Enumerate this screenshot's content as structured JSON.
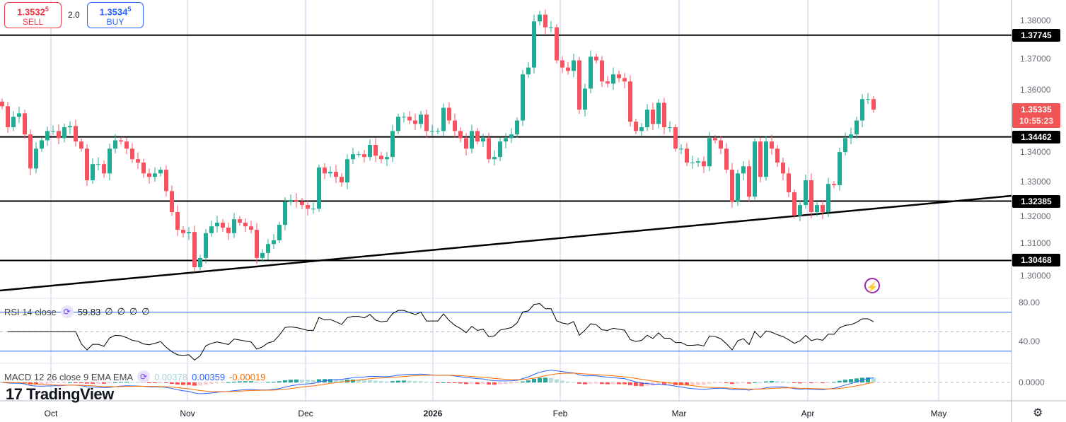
{
  "trade": {
    "sell": {
      "price_main": "1.3532",
      "price_sup": "5",
      "label": "SELL"
    },
    "spread": "2.0",
    "buy": {
      "price_main": "1.3534",
      "price_sup": "5",
      "label": "BUY"
    }
  },
  "price_axis": [
    "1.38000",
    "1.37000",
    "1.36000",
    "1.34000",
    "1.33000",
    "1.32000",
    "1.31000",
    "1.30000"
  ],
  "levels": [
    "1.37745",
    "1.34462",
    "1.32385",
    "1.30468"
  ],
  "current_price": {
    "price": "1.35335",
    "countdown": "10:55:23",
    "color": "#f05454"
  },
  "time_axis": [
    "Oct",
    "Nov",
    "Dec",
    "2026",
    "Feb",
    "Mar",
    "Apr",
    "May"
  ],
  "rsi": {
    "label": "RSI 14 close",
    "value": "59.83",
    "extra": [
      "∅",
      "∅",
      "∅",
      "∅"
    ],
    "axis": [
      "80.00",
      "40.00"
    ],
    "line_color": "#000000",
    "band_color": "#2962ff"
  },
  "macd": {
    "label": "MACD 12 26 close 9 EMA EMA",
    "hist": "0.00378",
    "macd": "0.00359",
    "signal": "-0.00019",
    "axis": [
      "0.0000"
    ],
    "macd_color": "#2962ff",
    "signal_color": "#ff6d00"
  },
  "logo": "TradingView",
  "colors": {
    "up": "#22ab94",
    "down": "#f7525f",
    "grid": "#d1c4e9"
  },
  "chart_data": {
    "type": "candlestick",
    "symbol_period": "daily",
    "ylim": [
      1.298,
      1.386
    ],
    "closes": [
      1.3545,
      1.3477,
      1.3511,
      1.3522,
      1.3454,
      1.3344,
      1.3408,
      1.3435,
      1.3465,
      1.3465,
      1.3442,
      1.3477,
      1.3481,
      1.3431,
      1.3408,
      1.3306,
      1.3358,
      1.3358,
      1.3328,
      1.3408,
      1.3435,
      1.3431,
      1.3408,
      1.3374,
      1.3363,
      1.3328,
      1.3317,
      1.3328,
      1.334,
      1.3271,
      1.3203,
      1.3146,
      1.3135,
      1.3139,
      1.3025,
      1.3055,
      1.3135,
      1.3157,
      1.3169,
      1.3153,
      1.3135,
      1.318,
      1.3169,
      1.3157,
      1.3146,
      1.3055,
      1.3071,
      1.31,
      1.3112,
      1.3162,
      1.3237,
      1.3242,
      1.3237,
      1.3226,
      1.3214,
      1.3214,
      1.3347,
      1.3328,
      1.3333,
      1.3317,
      1.3299,
      1.3374,
      1.339,
      1.339,
      1.3381,
      1.342,
      1.3385,
      1.3374,
      1.3381,
      1.3465,
      1.3511,
      1.3511,
      1.3499,
      1.3488,
      1.3518,
      1.3465,
      1.3465,
      1.3465,
      1.354,
      1.3499,
      1.3465,
      1.3442,
      1.3408,
      1.3465,
      1.3431,
      1.3442,
      1.3374,
      1.3381,
      1.3431,
      1.3442,
      1.3454,
      1.3499,
      1.3648,
      1.367,
      1.3819,
      1.3841,
      1.38,
      1.38,
      1.3693,
      1.367,
      1.3659,
      1.3693,
      1.3534,
      1.3602,
      1.3705,
      1.3693,
      1.3625,
      1.3618,
      1.3648,
      1.3636,
      1.3625,
      1.3495,
      1.3465,
      1.3477,
      1.3534,
      1.3488,
      1.3556,
      1.3477,
      1.3477,
      1.3408,
      1.3408,
      1.3363,
      1.3363,
      1.3367,
      1.3351,
      1.3442,
      1.3435,
      1.3408,
      1.334,
      1.3237,
      1.3328,
      1.3351,
      1.3253,
      1.3431,
      1.3317,
      1.3431,
      1.3408,
      1.3363,
      1.3328,
      1.3267,
      1.3192,
      1.3226,
      1.3306,
      1.3203,
      1.3226,
      1.3203,
      1.3294,
      1.329,
      1.3397,
      1.3442,
      1.3454,
      1.3499,
      1.3568,
      1.3568,
      1.3534
    ],
    "horizontal_levels": [
      1.37745,
      1.34462,
      1.32385,
      1.30468
    ]
  }
}
